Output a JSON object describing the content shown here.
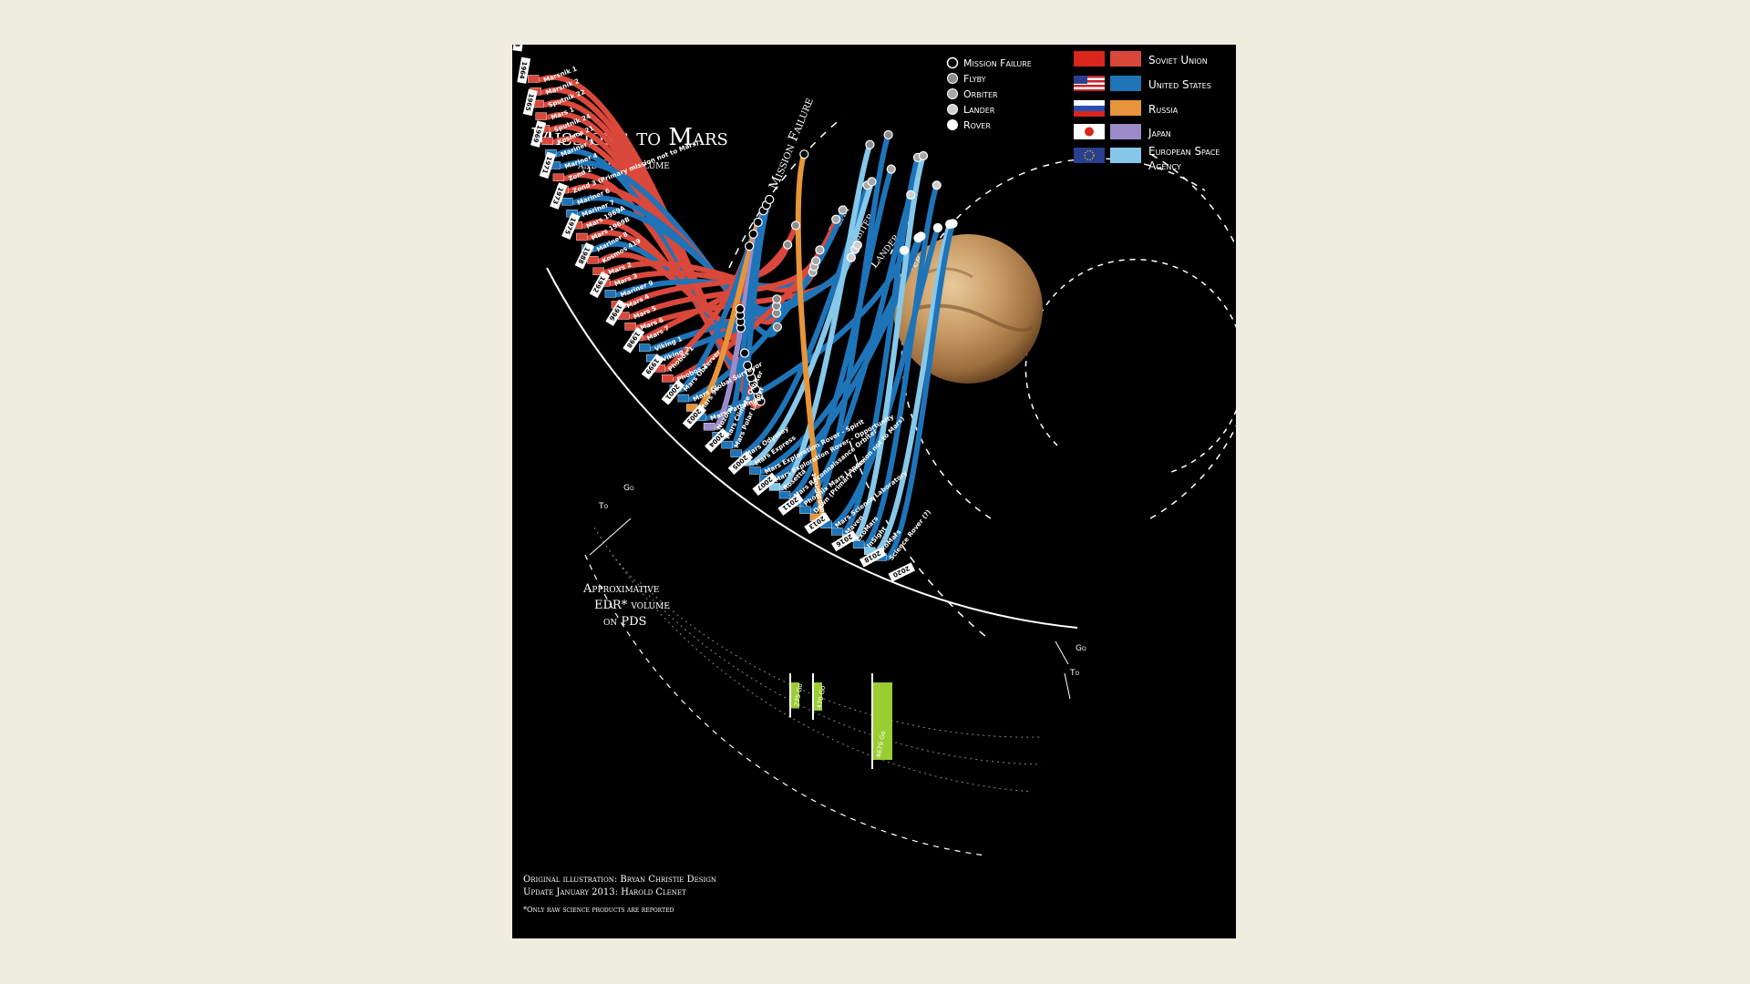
{
  "title": "Missions to Mars",
  "subtitle": "and Data volume",
  "ring_labels": [
    "Mission Failure",
    "Flyby",
    "Orbiter",
    "Lander",
    "Rover"
  ],
  "outcome_legend": [
    {
      "label": "Mission Failure",
      "fill": "#000000"
    },
    {
      "label": "Flyby",
      "fill": "#8c8c8c"
    },
    {
      "label": "Orbiter",
      "fill": "#a8a8a8"
    },
    {
      "label": "Lander",
      "fill": "#cfcfcf"
    },
    {
      "label": "Rover",
      "fill": "#ffffff"
    }
  ],
  "agency_legend": [
    {
      "label": "Soviet Union",
      "color": "#d9483b",
      "flag": "soviet-flag"
    },
    {
      "label": "United States",
      "color": "#1f74b8",
      "flag": "us-flag"
    },
    {
      "label": "Russia",
      "color": "#e6953a",
      "flag": "russia-flag"
    },
    {
      "label": "Japan",
      "color": "#9b8cc9",
      "flag": "japan-flag"
    },
    {
      "label": "European Space",
      "label2": "Agency",
      "color": "#86c8ea",
      "flag": "eu-flag"
    }
  ],
  "missions": [
    {
      "name": "Marsnik 1",
      "agency": "Soviet Union",
      "outcome": "Mission Failure"
    },
    {
      "name": "Marsnik 2",
      "agency": "Soviet Union",
      "outcome": "Mission Failure"
    },
    {
      "name": "Sputnik 22",
      "agency": "Soviet Union",
      "outcome": "Mission Failure"
    },
    {
      "name": "Mars 1",
      "agency": "Soviet Union",
      "outcome": "Mission Failure"
    },
    {
      "name": "Sputnik 24",
      "agency": "Soviet Union",
      "outcome": "Mission Failure"
    },
    {
      "name": "Kosmos 21",
      "agency": "Soviet Union",
      "outcome": "Mission Failure"
    },
    {
      "name": "Mariner 3",
      "agency": "United States",
      "outcome": "Mission Failure"
    },
    {
      "name": "Mariner 4",
      "agency": "United States",
      "outcome": "Flyby"
    },
    {
      "name": "Zond 2",
      "agency": "Soviet Union",
      "outcome": "Mission Failure"
    },
    {
      "name": "Zond 3 (Primary mission not to Mars)",
      "agency": "Soviet Union",
      "outcome": "Flyby"
    },
    {
      "name": "Mariner 6",
      "agency": "United States",
      "outcome": "Flyby"
    },
    {
      "name": "Mariner 7",
      "agency": "United States",
      "outcome": "Flyby"
    },
    {
      "name": "Mars 1969A",
      "agency": "Soviet Union",
      "outcome": "Mission Failure"
    },
    {
      "name": "Mars 1969B",
      "agency": "Soviet Union",
      "outcome": "Mission Failure"
    },
    {
      "name": "Mariner 8",
      "agency": "United States",
      "outcome": "Mission Failure"
    },
    {
      "name": "Kosmos 419",
      "agency": "Soviet Union",
      "outcome": "Mission Failure"
    },
    {
      "name": "Mars 2",
      "agency": "Soviet Union",
      "outcome": "Orbiter"
    },
    {
      "name": "Mars 3",
      "agency": "Soviet Union",
      "outcome": "Orbiter"
    },
    {
      "name": "Mariner 9",
      "agency": "United States",
      "outcome": "Orbiter"
    },
    {
      "name": "Mars 4",
      "agency": "Soviet Union",
      "outcome": "Flyby"
    },
    {
      "name": "Mars 5",
      "agency": "Soviet Union",
      "outcome": "Orbiter"
    },
    {
      "name": "Mars 6",
      "agency": "Soviet Union",
      "outcome": "Lander"
    },
    {
      "name": "Mars 7",
      "agency": "Soviet Union",
      "outcome": "Flyby"
    },
    {
      "name": "Viking 1",
      "agency": "United States",
      "outcome": "Lander"
    },
    {
      "name": "Viking 2",
      "agency": "United States",
      "outcome": "Lander"
    },
    {
      "name": "Phobos 1",
      "agency": "Soviet Union",
      "outcome": "Mission Failure"
    },
    {
      "name": "Phobos 2",
      "agency": "Soviet Union",
      "outcome": "Orbiter"
    },
    {
      "name": "Mars Observer",
      "agency": "United States",
      "outcome": "Mission Failure"
    },
    {
      "name": "Mars Global Surveyor",
      "agency": "United States",
      "outcome": "Orbiter"
    },
    {
      "name": "Mars 96",
      "agency": "Russia",
      "outcome": "Mission Failure"
    },
    {
      "name": "Mars Pathfinder",
      "agency": "United States",
      "outcome": "Rover"
    },
    {
      "name": "Nozomi",
      "agency": "Japan",
      "outcome": "Mission Failure"
    },
    {
      "name": "Mars Climate Orbiter",
      "agency": "United States",
      "outcome": "Mission Failure"
    },
    {
      "name": "Mars Polar Lander",
      "agency": "United States",
      "outcome": "Mission Failure"
    },
    {
      "name": "Mars Odyssey",
      "agency": "United States",
      "outcome": "Orbiter"
    },
    {
      "name": "Mars Express",
      "agency": "European Space Agency",
      "outcome": "Orbiter"
    },
    {
      "name": "Mars Exploration Rover - Spirit",
      "agency": "United States",
      "outcome": "Rover"
    },
    {
      "name": "Mars Exploration Rover - Opportunity",
      "agency": "United States",
      "outcome": "Rover"
    },
    {
      "name": "Rosetta",
      "agency": "European Space Agency",
      "outcome": "Flyby"
    },
    {
      "name": "Mars Reconnaissance Orbiter",
      "agency": "United States",
      "outcome": "Orbiter"
    },
    {
      "name": "Phoenix Mars Lander",
      "agency": "United States",
      "outcome": "Lander"
    },
    {
      "name": "Dawn (Primary mission not to Mars)",
      "agency": "United States",
      "outcome": "Flyby"
    },
    {
      "name": "Phobos-Grunt",
      "agency": "Russia",
      "outcome": "Mission Failure"
    },
    {
      "name": "Mars Science Laboratory",
      "agency": "United States",
      "outcome": "Rover"
    },
    {
      "name": "Maven",
      "agency": "United States",
      "outcome": "Orbiter"
    },
    {
      "name": "ExoMars",
      "agency": "European Space Agency",
      "outcome": "Orbiter"
    },
    {
      "name": "InSight",
      "agency": "United States",
      "outcome": "Lander"
    },
    {
      "name": "ExoMars",
      "agency": "European Space Agency",
      "outcome": "Rover"
    },
    {
      "name": "Science Rover (?)",
      "agency": "United States",
      "outcome": "Rover"
    }
  ],
  "years": [
    "1960",
    "1962",
    "1963",
    "1964",
    "1965",
    "1969",
    "1971",
    "1973",
    "1975",
    "1988",
    "1992",
    "1996",
    "1998",
    "1999",
    "2001",
    "2003",
    "2004",
    "2005",
    "2007",
    "2011",
    "2013",
    "2016",
    "2018",
    "2020"
  ],
  "data_volume": {
    "label_lines": [
      "Approximative",
      "EDR* volume",
      "on PDS"
    ],
    "unit_go": "Go",
    "unit_to": "To",
    "bars": [
      {
        "label": "275 Go",
        "value": 275
      },
      {
        "label": "470 Go",
        "value": 470
      },
      {
        "label": "4679 Go",
        "value": 4679
      }
    ]
  },
  "credits": [
    "Original illustration: Bryan Christie Design",
    "Update January 2013: Harold Clenet",
    "*Only raw science products are reported"
  ]
}
